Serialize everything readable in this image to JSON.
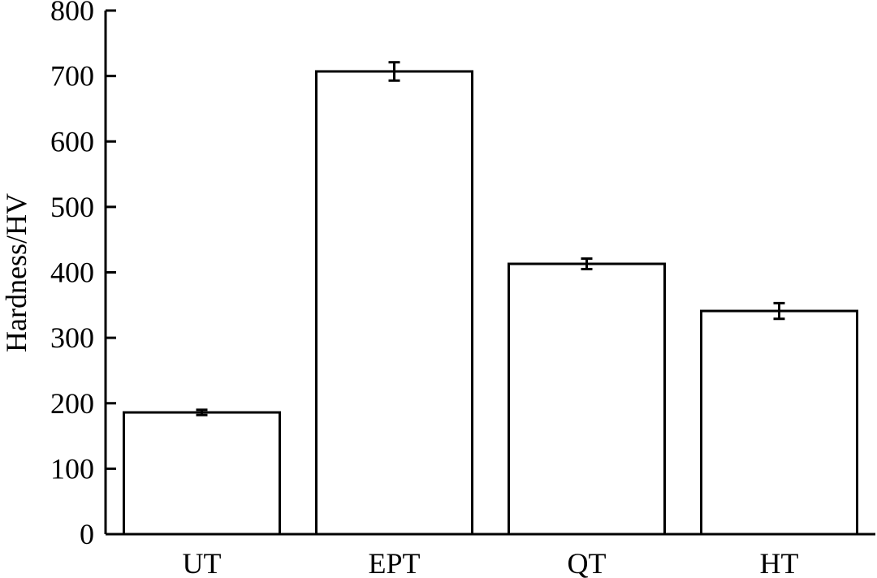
{
  "chart_data": {
    "type": "bar",
    "title": "",
    "xlabel": "",
    "ylabel": "Hardness/HV",
    "categories": [
      "UT",
      "EPT",
      "QT",
      "HT"
    ],
    "values": [
      186,
      707,
      413,
      341
    ],
    "errors": [
      4,
      14,
      8,
      12
    ],
    "ylim": [
      0,
      800
    ],
    "yticks": [
      0,
      100,
      200,
      300,
      400,
      500,
      600,
      700,
      800
    ],
    "grid": false,
    "bar_fill": "#ffffff",
    "stroke_color": "#000000"
  }
}
